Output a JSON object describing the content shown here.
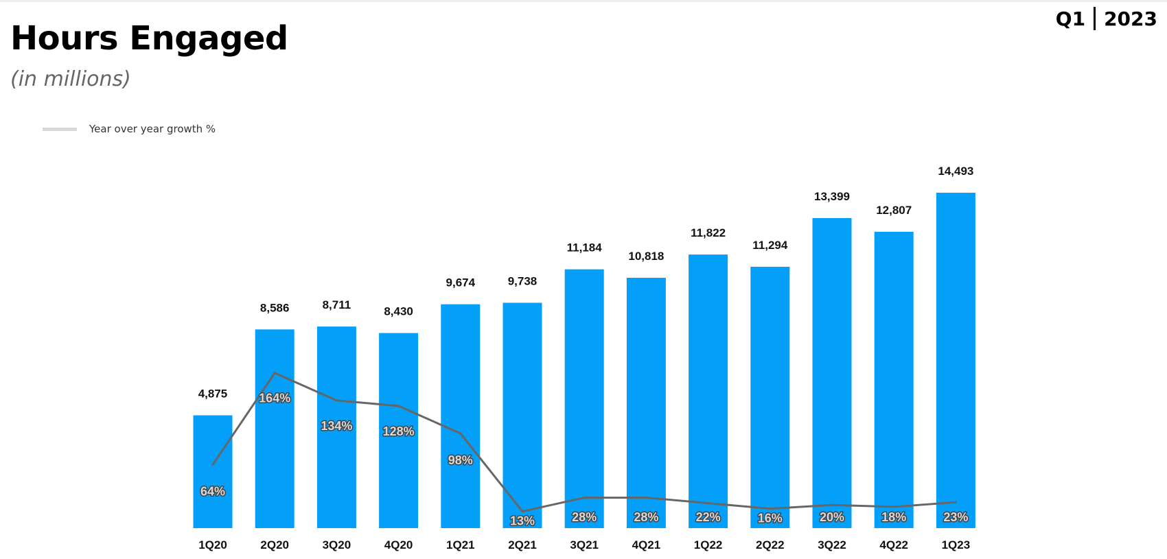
{
  "header": {
    "title": "Hours Engaged",
    "subtitle": "(in millions)",
    "period_quarter": "Q1",
    "period_year": "2023"
  },
  "legend": {
    "line_label": "Year over year growth %"
  },
  "colors": {
    "bar": "#039FF9",
    "line": "#666666",
    "legend_swatch": "#D9D9D9"
  },
  "chart_data": {
    "type": "bar",
    "title": "Hours Engaged",
    "subtitle": "(in millions)",
    "xlabel": "",
    "ylabel": "",
    "ylim": [
      0,
      15000
    ],
    "categories": [
      "1Q20",
      "2Q20",
      "3Q20",
      "4Q20",
      "1Q21",
      "2Q21",
      "3Q21",
      "4Q21",
      "1Q22",
      "2Q22",
      "3Q22",
      "4Q22",
      "1Q23"
    ],
    "series": [
      {
        "values": [
          4875,
          8586,
          8711,
          8430,
          9674,
          9738,
          11184,
          10818,
          11822,
          11294,
          13399,
          12807,
          14493
        ],
        "labels": [
          "4,875",
          "8,586",
          "8,711",
          "8,430",
          "9,674",
          "9,738",
          "11,184",
          "10,818",
          "11,822",
          "11,294",
          "13,399",
          "12,807",
          "14,493"
        ]
      },
      {
        "name": "Year over year growth %",
        "type": "line",
        "values": [
          64,
          164,
          134,
          128,
          98,
          13,
          28,
          28,
          22,
          16,
          20,
          18,
          23
        ],
        "labels": [
          "64%",
          "164%",
          "134%",
          "128%",
          "98%",
          "13%",
          "28%",
          "28%",
          "22%",
          "16%",
          "20%",
          "18%",
          "23%"
        ]
      }
    ],
    "grid": false,
    "legend_position": "top-left"
  }
}
